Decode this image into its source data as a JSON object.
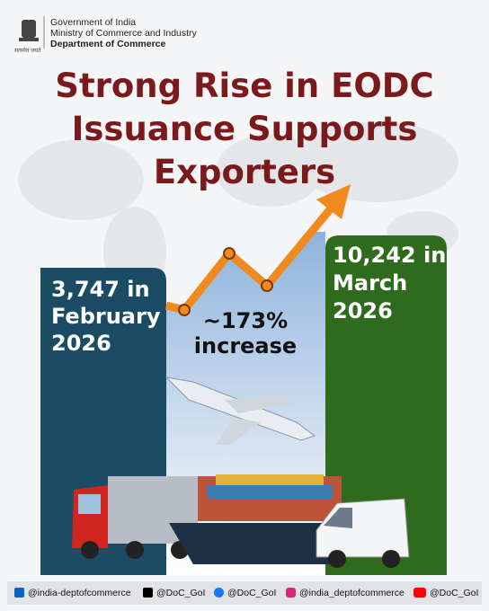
{
  "header": {
    "emblem_motto": "सत्यमेव जयते",
    "lines": [
      "Government of India",
      "Ministry of Commerce and Industry",
      "Department of Commerce"
    ]
  },
  "title": {
    "lines": [
      "Strong Rise in EODC",
      "Issuance Supports",
      "Exporters"
    ]
  },
  "february": {
    "lines": [
      "3,747 in",
      "February",
      "2026"
    ]
  },
  "march": {
    "lines": [
      "10,242 in",
      "March",
      "2026"
    ]
  },
  "increase": {
    "lines": [
      "~173%",
      "increase"
    ]
  },
  "footer": {
    "handles": [
      "@india-deptofcommerce",
      "@DoC_GoI",
      "@DoC_GoI",
      "@india_deptofcommerce",
      "@DoC_GoI"
    ]
  }
}
